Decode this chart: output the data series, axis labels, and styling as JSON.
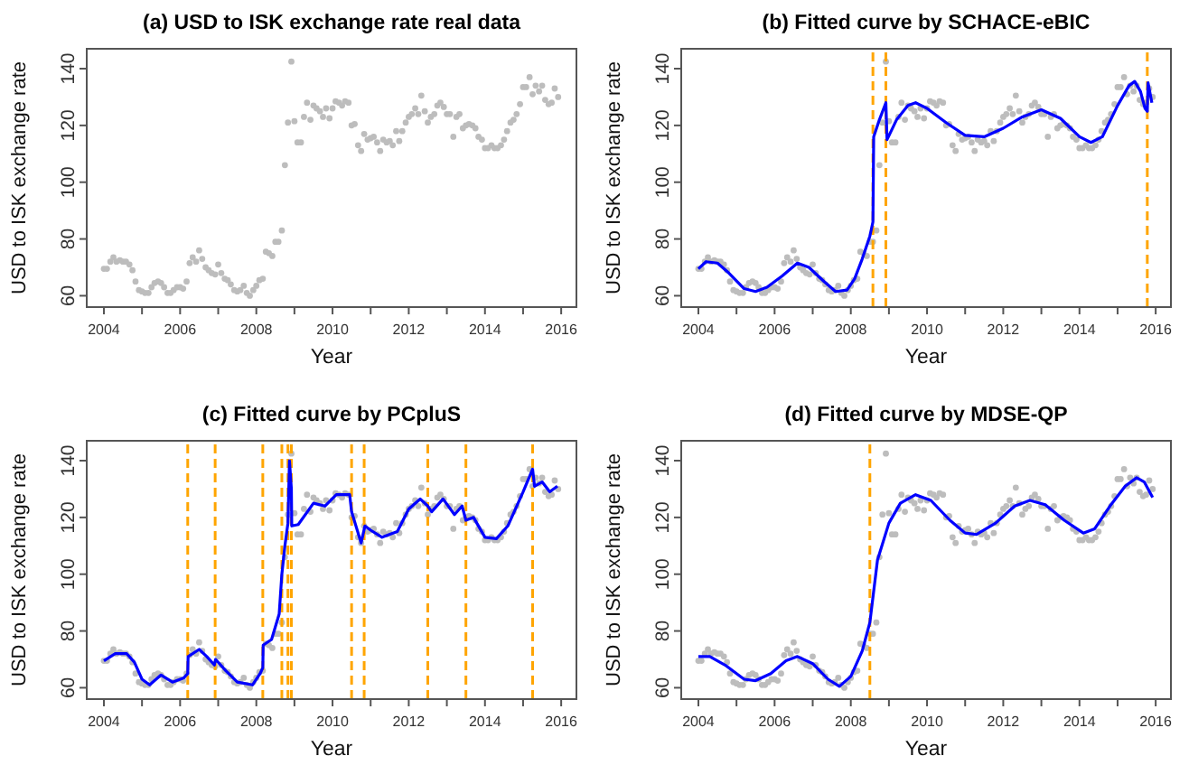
{
  "chart_data": [
    {
      "type": "scatter",
      "title": "(a) USD to ISK exchange rate real data",
      "xlabel": "Year",
      "ylabel": "USD to ISK exchange rate",
      "xlim": [
        2003.55,
        2016.4
      ],
      "ylim": [
        56,
        147
      ],
      "xticks": [
        2004,
        {
          "value": 2005,
          "label": null
        },
        2006,
        {
          "value": 2007,
          "label": null
        },
        2008,
        {
          "value": 2009,
          "label": null
        },
        2010,
        {
          "value": 2011,
          "label": null
        },
        2012,
        {
          "value": 2013,
          "label": null
        },
        2014,
        {
          "value": 2015,
          "label": null
        },
        2016
      ],
      "yticks": [
        60,
        80,
        100,
        120,
        140
      ],
      "series": [
        {
          "marker": "circle",
          "color": "#bdbdbd",
          "x": [
            2004,
            2004.08,
            2004.17,
            2004.25,
            2004.33,
            2004.42,
            2004.5,
            2004.58,
            2004.67,
            2004.75,
            2004.83,
            2004.92,
            2005,
            2005.08,
            2005.17,
            2005.25,
            2005.33,
            2005.42,
            2005.5,
            2005.58,
            2005.67,
            2005.75,
            2005.83,
            2005.92,
            2006,
            2006.08,
            2006.17,
            2006.25,
            2006.33,
            2006.42,
            2006.5,
            2006.58,
            2006.67,
            2006.75,
            2006.83,
            2006.92,
            2007,
            2007.08,
            2007.17,
            2007.25,
            2007.33,
            2007.42,
            2007.5,
            2007.58,
            2007.67,
            2007.75,
            2007.83,
            2007.92,
            2008,
            2008.08,
            2008.17,
            2008.25,
            2008.33,
            2008.42,
            2008.5,
            2008.58,
            2008.67,
            2008.75,
            2008.83,
            2008.92,
            2009,
            2009.08,
            2009.17,
            2009.25,
            2009.33,
            2009.42,
            2009.5,
            2009.58,
            2009.67,
            2009.75,
            2009.83,
            2009.92,
            2010,
            2010.08,
            2010.17,
            2010.25,
            2010.33,
            2010.42,
            2010.5,
            2010.58,
            2010.67,
            2010.75,
            2010.83,
            2010.92,
            2011,
            2011.08,
            2011.17,
            2011.25,
            2011.33,
            2011.42,
            2011.5,
            2011.58,
            2011.67,
            2011.75,
            2011.83,
            2011.92,
            2012,
            2012.08,
            2012.17,
            2012.25,
            2012.33,
            2012.42,
            2012.5,
            2012.58,
            2012.67,
            2012.75,
            2012.83,
            2012.92,
            2013,
            2013.08,
            2013.17,
            2013.25,
            2013.33,
            2013.42,
            2013.5,
            2013.58,
            2013.67,
            2013.75,
            2013.83,
            2013.92,
            2014,
            2014.08,
            2014.17,
            2014.25,
            2014.33,
            2014.42,
            2014.5,
            2014.58,
            2014.67,
            2014.75,
            2014.83,
            2014.92,
            2015,
            2015.08,
            2015.17,
            2015.25,
            2015.33,
            2015.42,
            2015.5,
            2015.58,
            2015.67,
            2015.75,
            2015.83,
            2015.92
          ],
          "values": [
            69.5,
            69.5,
            72,
            73.5,
            72,
            72.5,
            72,
            72,
            71,
            69,
            65,
            62,
            61.5,
            61,
            61,
            63,
            64.5,
            65,
            64.5,
            63,
            61,
            61,
            62,
            63,
            63,
            62.5,
            65,
            71.5,
            73.5,
            72,
            76,
            73,
            70,
            69,
            68,
            67.5,
            71,
            68,
            66,
            65.5,
            64,
            62,
            61.5,
            62,
            63.5,
            61,
            60,
            62,
            63.5,
            65.5,
            66,
            75.5,
            75,
            74,
            79,
            79,
            83,
            106,
            121,
            142.5,
            121.5,
            114,
            114,
            123,
            128,
            122,
            127,
            126,
            125,
            123,
            126,
            122.5,
            126,
            128.5,
            128,
            127,
            128.5,
            128,
            120,
            120.5,
            113,
            111,
            117,
            115,
            115.5,
            116,
            114,
            111,
            115,
            114,
            114.5,
            113,
            118,
            114.5,
            118,
            121,
            123,
            124,
            126,
            124,
            130.5,
            125,
            121,
            123,
            124,
            127,
            128,
            126.5,
            124,
            124,
            116,
            123,
            124,
            119,
            120,
            120.5,
            120,
            119,
            116,
            115,
            112,
            112,
            113,
            112,
            112,
            113,
            115,
            118,
            121,
            122,
            124,
            127.5,
            133.5,
            133.5,
            137,
            131,
            134,
            132,
            134,
            129,
            127.5,
            128,
            133,
            130
          ]
        }
      ]
    },
    {
      "type": "line",
      "title": "(b) Fitted curve by SCHACE-eBIC",
      "xlabel": "Year",
      "ylabel": "USD to ISK exchange rate",
      "xlim": [
        2003.55,
        2016.4
      ],
      "ylim": [
        56,
        147
      ],
      "xticks": [
        2004,
        {
          "value": 2005,
          "label": null
        },
        2006,
        {
          "value": 2007,
          "label": null
        },
        2008,
        {
          "value": 2009,
          "label": null
        },
        2010,
        {
          "value": 2011,
          "label": null
        },
        2012,
        {
          "value": 2013,
          "label": null
        },
        2014,
        {
          "value": 2015,
          "label": null
        },
        2016
      ],
      "yticks": [
        60,
        80,
        100,
        120,
        140
      ],
      "ref_lines": [
        {
          "axis": "x",
          "value": 2008.58,
          "color": "#ffa500",
          "line_style": "dashed"
        },
        {
          "axis": "x",
          "value": 2008.92,
          "color": "#ffa500",
          "line_style": "dashed"
        },
        {
          "axis": "x",
          "value": 2015.78,
          "color": "#ffa500",
          "line_style": "dashed"
        }
      ],
      "series": [
        {
          "type": "scatter",
          "color": "#bdbdbd",
          "x": [
            2004,
            2004.08,
            2004.17,
            2004.25,
            2004.33,
            2004.42,
            2004.5,
            2004.58,
            2004.67,
            2004.75,
            2004.83,
            2004.92,
            2005,
            2005.08,
            2005.17,
            2005.25,
            2005.33,
            2005.42,
            2005.5,
            2005.58,
            2005.67,
            2005.75,
            2005.83,
            2005.92,
            2006,
            2006.08,
            2006.17,
            2006.25,
            2006.33,
            2006.42,
            2006.5,
            2006.58,
            2006.67,
            2006.75,
            2006.83,
            2006.92,
            2007,
            2007.08,
            2007.17,
            2007.25,
            2007.33,
            2007.42,
            2007.5,
            2007.58,
            2007.67,
            2007.75,
            2007.83,
            2007.92,
            2008,
            2008.08,
            2008.17,
            2008.25,
            2008.33,
            2008.42,
            2008.5,
            2008.58,
            2008.67,
            2008.75,
            2008.83,
            2008.92,
            2009,
            2009.08,
            2009.17,
            2009.25,
            2009.33,
            2009.42,
            2009.5,
            2009.58,
            2009.67,
            2009.75,
            2009.83,
            2009.92,
            2010,
            2010.08,
            2010.17,
            2010.25,
            2010.33,
            2010.42,
            2010.5,
            2010.58,
            2010.67,
            2010.75,
            2010.83,
            2010.92,
            2011,
            2011.08,
            2011.17,
            2011.25,
            2011.33,
            2011.42,
            2011.5,
            2011.58,
            2011.67,
            2011.75,
            2011.83,
            2011.92,
            2012,
            2012.08,
            2012.17,
            2012.25,
            2012.33,
            2012.42,
            2012.5,
            2012.58,
            2012.67,
            2012.75,
            2012.83,
            2012.92,
            2013,
            2013.08,
            2013.17,
            2013.25,
            2013.33,
            2013.42,
            2013.5,
            2013.58,
            2013.67,
            2013.75,
            2013.83,
            2013.92,
            2014,
            2014.08,
            2014.17,
            2014.25,
            2014.33,
            2014.42,
            2014.5,
            2014.58,
            2014.67,
            2014.75,
            2014.83,
            2014.92,
            2015,
            2015.08,
            2015.17,
            2015.25,
            2015.33,
            2015.42,
            2015.5,
            2015.58,
            2015.67,
            2015.75,
            2015.83,
            2015.92
          ],
          "values": [
            69.5,
            69.5,
            72,
            73.5,
            72,
            72.5,
            72,
            72,
            71,
            69,
            65,
            62,
            61.5,
            61,
            61,
            63,
            64.5,
            65,
            64.5,
            63,
            61,
            61,
            62,
            63,
            63,
            62.5,
            65,
            71.5,
            73.5,
            72,
            76,
            73,
            70,
            69,
            68,
            67.5,
            71,
            68,
            66,
            65.5,
            64,
            62,
            61.5,
            62,
            63.5,
            61,
            60,
            62,
            63.5,
            65.5,
            66,
            75.5,
            75,
            74,
            79,
            79,
            83,
            106,
            121,
            142.5,
            121.5,
            114,
            114,
            123,
            128,
            122,
            127,
            126,
            125,
            123,
            126,
            122.5,
            126,
            128.5,
            128,
            127,
            128.5,
            128,
            120,
            120.5,
            113,
            111,
            117,
            115,
            115.5,
            116,
            114,
            111,
            115,
            114,
            114.5,
            113,
            118,
            114.5,
            118,
            121,
            123,
            124,
            126,
            124,
            130.5,
            125,
            121,
            123,
            124,
            127,
            128,
            126.5,
            124,
            124,
            116,
            123,
            124,
            119,
            120,
            120.5,
            120,
            119,
            116,
            115,
            112,
            112,
            113,
            112,
            112,
            113,
            115,
            118,
            121,
            122,
            124,
            127.5,
            133.5,
            133.5,
            137,
            131,
            134,
            132,
            134,
            129,
            127.5,
            128,
            133,
            130
          ]
        },
        {
          "marker": "none",
          "color": "#0000ff",
          "x": [
            2004,
            2004.2,
            2004.5,
            2004.8,
            2005.2,
            2005.5,
            2005.8,
            2006.2,
            2006.6,
            2006.9,
            2007.3,
            2007.6,
            2007.9,
            2008.1,
            2008.3,
            2008.5,
            2008.58,
            2008.6,
            2008.75,
            2008.92,
            2008.95,
            2009.2,
            2009.5,
            2009.7,
            2010,
            2010.5,
            2011,
            2011.5,
            2012,
            2012.5,
            2013,
            2013.5,
            2014,
            2014.3,
            2014.6,
            2015,
            2015.3,
            2015.45,
            2015.6,
            2015.72,
            2015.78,
            2015.8,
            2015.9
          ],
          "values": [
            69.5,
            72,
            71.5,
            68,
            62.5,
            61.5,
            63,
            67,
            71.5,
            70,
            65,
            61.5,
            62,
            66,
            73,
            81,
            86,
            116,
            122,
            128,
            115,
            122,
            127,
            128,
            126,
            121,
            116.5,
            116,
            119,
            123,
            125.5,
            122.5,
            116,
            114,
            116,
            127,
            134,
            135.5,
            132,
            126,
            125,
            135,
            128
          ]
        }
      ]
    },
    {
      "type": "line",
      "title": "(c) Fitted curve by PCpluS",
      "xlabel": "Year",
      "ylabel": "USD to ISK exchange rate",
      "xlim": [
        2003.55,
        2016.4
      ],
      "ylim": [
        56,
        147
      ],
      "xticks": [
        2004,
        {
          "value": 2005,
          "label": null
        },
        2006,
        {
          "value": 2007,
          "label": null
        },
        2008,
        {
          "value": 2009,
          "label": null
        },
        2010,
        {
          "value": 2011,
          "label": null
        },
        2012,
        {
          "value": 2013,
          "label": null
        },
        2014,
        {
          "value": 2015,
          "label": null
        },
        2016
      ],
      "yticks": [
        60,
        80,
        100,
        120,
        140
      ],
      "ref_lines": [
        {
          "axis": "x",
          "value": 2006.2,
          "color": "#ffa500",
          "line_style": "dashed"
        },
        {
          "axis": "x",
          "value": 2006.92,
          "color": "#ffa500",
          "line_style": "dashed"
        },
        {
          "axis": "x",
          "value": 2008.17,
          "color": "#ffa500",
          "line_style": "dashed"
        },
        {
          "axis": "x",
          "value": 2008.67,
          "color": "#ffa500",
          "line_style": "dashed"
        },
        {
          "axis": "x",
          "value": 2008.83,
          "color": "#ffa500",
          "line_style": "dashed"
        },
        {
          "axis": "x",
          "value": 2008.92,
          "color": "#ffa500",
          "line_style": "dashed"
        },
        {
          "axis": "x",
          "value": 2010.5,
          "color": "#ffa500",
          "line_style": "dashed"
        },
        {
          "axis": "x",
          "value": 2010.83,
          "color": "#ffa500",
          "line_style": "dashed"
        },
        {
          "axis": "x",
          "value": 2012.5,
          "color": "#ffa500",
          "line_style": "dashed"
        },
        {
          "axis": "x",
          "value": 2013.5,
          "color": "#ffa500",
          "line_style": "dashed"
        },
        {
          "axis": "x",
          "value": 2015.25,
          "color": "#ffa500",
          "line_style": "dashed"
        }
      ],
      "series": [
        {
          "type": "scatter",
          "color": "#bdbdbd",
          "x": [
            2004,
            2004.08,
            2004.17,
            2004.25,
            2004.33,
            2004.42,
            2004.5,
            2004.58,
            2004.67,
            2004.75,
            2004.83,
            2004.92,
            2005,
            2005.08,
            2005.17,
            2005.25,
            2005.33,
            2005.42,
            2005.5,
            2005.58,
            2005.67,
            2005.75,
            2005.83,
            2005.92,
            2006,
            2006.08,
            2006.17,
            2006.25,
            2006.33,
            2006.42,
            2006.5,
            2006.58,
            2006.67,
            2006.75,
            2006.83,
            2006.92,
            2007,
            2007.08,
            2007.17,
            2007.25,
            2007.33,
            2007.42,
            2007.5,
            2007.58,
            2007.67,
            2007.75,
            2007.83,
            2007.92,
            2008,
            2008.08,
            2008.17,
            2008.25,
            2008.33,
            2008.42,
            2008.5,
            2008.58,
            2008.67,
            2008.75,
            2008.83,
            2008.92,
            2009,
            2009.08,
            2009.17,
            2009.25,
            2009.33,
            2009.42,
            2009.5,
            2009.58,
            2009.67,
            2009.75,
            2009.83,
            2009.92,
            2010,
            2010.08,
            2010.17,
            2010.25,
            2010.33,
            2010.42,
            2010.5,
            2010.58,
            2010.67,
            2010.75,
            2010.83,
            2010.92,
            2011,
            2011.08,
            2011.17,
            2011.25,
            2011.33,
            2011.42,
            2011.5,
            2011.58,
            2011.67,
            2011.75,
            2011.83,
            2011.92,
            2012,
            2012.08,
            2012.17,
            2012.25,
            2012.33,
            2012.42,
            2012.5,
            2012.58,
            2012.67,
            2012.75,
            2012.83,
            2012.92,
            2013,
            2013.08,
            2013.17,
            2013.25,
            2013.33,
            2013.42,
            2013.5,
            2013.58,
            2013.67,
            2013.75,
            2013.83,
            2013.92,
            2014,
            2014.08,
            2014.17,
            2014.25,
            2014.33,
            2014.42,
            2014.5,
            2014.58,
            2014.67,
            2014.75,
            2014.83,
            2014.92,
            2015,
            2015.08,
            2015.17,
            2015.25,
            2015.33,
            2015.42,
            2015.5,
            2015.58,
            2015.67,
            2015.75,
            2015.83,
            2015.92
          ],
          "values": [
            69.5,
            69.5,
            72,
            73.5,
            72,
            72.5,
            72,
            72,
            71,
            69,
            65,
            62,
            61.5,
            61,
            61,
            63,
            64.5,
            65,
            64.5,
            63,
            61,
            61,
            62,
            63,
            63,
            62.5,
            65,
            71.5,
            73.5,
            72,
            76,
            73,
            70,
            69,
            68,
            67.5,
            71,
            68,
            66,
            65.5,
            64,
            62,
            61.5,
            62,
            63.5,
            61,
            60,
            62,
            63.5,
            65.5,
            66,
            75.5,
            75,
            74,
            79,
            79,
            83,
            106,
            121,
            142.5,
            121.5,
            114,
            114,
            123,
            128,
            122,
            127,
            126,
            125,
            123,
            126,
            122.5,
            126,
            128.5,
            128,
            127,
            128.5,
            128,
            120,
            120.5,
            113,
            111,
            117,
            115,
            115.5,
            116,
            114,
            111,
            115,
            114,
            114.5,
            113,
            118,
            114.5,
            118,
            121,
            123,
            124,
            126,
            124,
            130.5,
            125,
            121,
            123,
            124,
            127,
            128,
            126.5,
            124,
            124,
            116,
            123,
            124,
            119,
            120,
            120.5,
            120,
            119,
            116,
            115,
            112,
            112,
            113,
            112,
            112,
            113,
            115,
            118,
            121,
            122,
            124,
            127.5,
            133.5,
            133.5,
            137,
            131,
            134,
            132,
            134,
            129,
            127.5,
            128,
            133,
            130
          ]
        },
        {
          "marker": "none",
          "color": "#0000ff",
          "x": [
            2004,
            2004.3,
            2004.6,
            2004.8,
            2005,
            2005.2,
            2005.5,
            2005.8,
            2006.1,
            2006.2,
            2006.21,
            2006.5,
            2006.7,
            2006.9,
            2006.93,
            2007.2,
            2007.5,
            2007.9,
            2008.1,
            2008.17,
            2008.18,
            2008.4,
            2008.6,
            2008.67,
            2008.75,
            2008.83,
            2008.87,
            2008.92,
            2008.93,
            2009.1,
            2009.5,
            2009.8,
            2010.1,
            2010.45,
            2010.5,
            2010.75,
            2010.85,
            2011,
            2011.3,
            2011.7,
            2012,
            2012.3,
            2012.5,
            2012.6,
            2012.9,
            2013.2,
            2013.4,
            2013.5,
            2013.7,
            2014,
            2014.3,
            2014.6,
            2015,
            2015.25,
            2015.3,
            2015.5,
            2015.7,
            2015.9
          ],
          "values": [
            69.5,
            72,
            72,
            69,
            63,
            61,
            64.5,
            62,
            63.5,
            65,
            71,
            73.5,
            71,
            68,
            70,
            66,
            62,
            61,
            65,
            67,
            75,
            77,
            86,
            100,
            110,
            118,
            140,
            130,
            117,
            117.5,
            125,
            124,
            128,
            128,
            122,
            111,
            117,
            115.5,
            113,
            115,
            123,
            126.5,
            124,
            122,
            126.5,
            121,
            124,
            119,
            120,
            113,
            112.5,
            117,
            129,
            137,
            131,
            132.5,
            129,
            131
          ]
        }
      ]
    },
    {
      "type": "line",
      "title": "(d) Fitted curve by MDSE-QP",
      "xlabel": "Year",
      "ylabel": "USD to ISK exchange rate",
      "xlim": [
        2003.55,
        2016.4
      ],
      "ylim": [
        56,
        147
      ],
      "xticks": [
        2004,
        {
          "value": 2005,
          "label": null
        },
        2006,
        {
          "value": 2007,
          "label": null
        },
        2008,
        {
          "value": 2009,
          "label": null
        },
        2010,
        {
          "value": 2011,
          "label": null
        },
        2012,
        {
          "value": 2013,
          "label": null
        },
        2014,
        {
          "value": 2015,
          "label": null
        },
        2016
      ],
      "yticks": [
        60,
        80,
        100,
        120,
        140
      ],
      "ref_lines": [
        {
          "axis": "x",
          "value": 2008.5,
          "color": "#ffa500",
          "line_style": "dashed"
        }
      ],
      "series": [
        {
          "type": "scatter",
          "color": "#bdbdbd",
          "x": [
            2004,
            2004.08,
            2004.17,
            2004.25,
            2004.33,
            2004.42,
            2004.5,
            2004.58,
            2004.67,
            2004.75,
            2004.83,
            2004.92,
            2005,
            2005.08,
            2005.17,
            2005.25,
            2005.33,
            2005.42,
            2005.5,
            2005.58,
            2005.67,
            2005.75,
            2005.83,
            2005.92,
            2006,
            2006.08,
            2006.17,
            2006.25,
            2006.33,
            2006.42,
            2006.5,
            2006.58,
            2006.67,
            2006.75,
            2006.83,
            2006.92,
            2007,
            2007.08,
            2007.17,
            2007.25,
            2007.33,
            2007.42,
            2007.5,
            2007.58,
            2007.67,
            2007.75,
            2007.83,
            2007.92,
            2008,
            2008.08,
            2008.17,
            2008.25,
            2008.33,
            2008.42,
            2008.5,
            2008.58,
            2008.67,
            2008.75,
            2008.83,
            2008.92,
            2009,
            2009.08,
            2009.17,
            2009.25,
            2009.33,
            2009.42,
            2009.5,
            2009.58,
            2009.67,
            2009.75,
            2009.83,
            2009.92,
            2010,
            2010.08,
            2010.17,
            2010.25,
            2010.33,
            2010.42,
            2010.5,
            2010.58,
            2010.67,
            2010.75,
            2010.83,
            2010.92,
            2011,
            2011.08,
            2011.17,
            2011.25,
            2011.33,
            2011.42,
            2011.5,
            2011.58,
            2011.67,
            2011.75,
            2011.83,
            2011.92,
            2012,
            2012.08,
            2012.17,
            2012.25,
            2012.33,
            2012.42,
            2012.5,
            2012.58,
            2012.67,
            2012.75,
            2012.83,
            2012.92,
            2013,
            2013.08,
            2013.17,
            2013.25,
            2013.33,
            2013.42,
            2013.5,
            2013.58,
            2013.67,
            2013.75,
            2013.83,
            2013.92,
            2014,
            2014.08,
            2014.17,
            2014.25,
            2014.33,
            2014.42,
            2014.5,
            2014.58,
            2014.67,
            2014.75,
            2014.83,
            2014.92,
            2015,
            2015.08,
            2015.17,
            2015.25,
            2015.33,
            2015.42,
            2015.5,
            2015.58,
            2015.67,
            2015.75,
            2015.83,
            2015.92
          ],
          "values": [
            69.5,
            69.5,
            72,
            73.5,
            72,
            72.5,
            72,
            72,
            71,
            69,
            65,
            62,
            61.5,
            61,
            61,
            63,
            64.5,
            65,
            64.5,
            63,
            61,
            61,
            62,
            63,
            63,
            62.5,
            65,
            71.5,
            73.5,
            72,
            76,
            73,
            70,
            69,
            68,
            67.5,
            71,
            68,
            66,
            65.5,
            64,
            62,
            61.5,
            62,
            63.5,
            61,
            60,
            62,
            63.5,
            65.5,
            66,
            75.5,
            75,
            74,
            79,
            79,
            83,
            106,
            121,
            142.5,
            121.5,
            114,
            114,
            123,
            128,
            122,
            127,
            126,
            125,
            123,
            126,
            122.5,
            126,
            128.5,
            128,
            127,
            128.5,
            128,
            120,
            120.5,
            113,
            111,
            117,
            115,
            115.5,
            116,
            114,
            111,
            115,
            114,
            114.5,
            113,
            118,
            114.5,
            118,
            121,
            123,
            124,
            126,
            124,
            130.5,
            125,
            121,
            123,
            124,
            127,
            128,
            126.5,
            124,
            124,
            116,
            123,
            124,
            119,
            120,
            120.5,
            120,
            119,
            116,
            115,
            112,
            112,
            113,
            112,
            112,
            113,
            115,
            118,
            121,
            122,
            124,
            127.5,
            133.5,
            133.5,
            137,
            131,
            134,
            132,
            134,
            129,
            127.5,
            128,
            133,
            130
          ]
        },
        {
          "marker": "none",
          "color": "#0000ff",
          "x": [
            2004,
            2004.3,
            2004.7,
            2005.2,
            2005.5,
            2005.9,
            2006.3,
            2006.6,
            2007,
            2007.4,
            2007.7,
            2008,
            2008.3,
            2008.5,
            2008.7,
            2009,
            2009.3,
            2009.7,
            2010.1,
            2010.6,
            2011,
            2011.3,
            2011.8,
            2012.3,
            2012.7,
            2013.1,
            2013.6,
            2014.1,
            2014.4,
            2014.8,
            2015.2,
            2015.5,
            2015.7,
            2015.92
          ],
          "values": [
            71,
            71,
            68,
            63,
            62.5,
            65,
            69.5,
            71,
            68.5,
            63,
            60.5,
            64,
            73,
            83,
            105,
            118,
            125,
            128,
            126,
            119,
            114.5,
            114,
            118,
            124,
            126,
            124.5,
            119,
            114.5,
            116,
            124,
            131,
            134,
            132.5,
            127
          ]
        }
      ]
    }
  ]
}
